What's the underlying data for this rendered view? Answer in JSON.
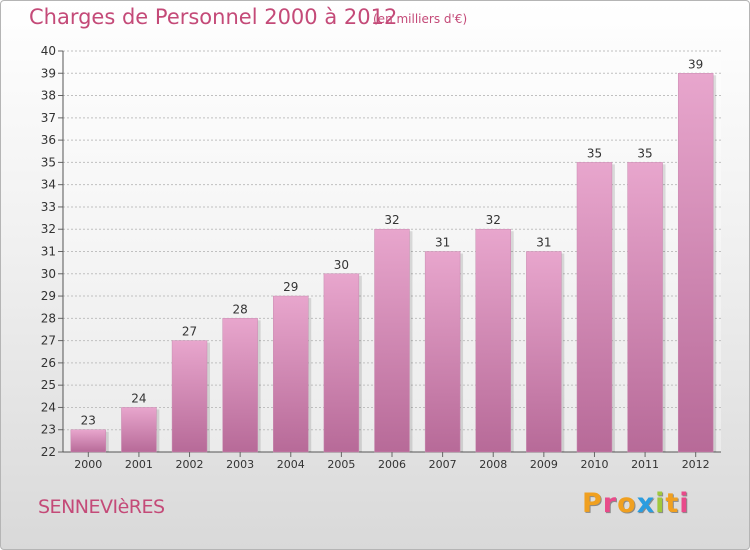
{
  "header": {
    "title": "Charges de Personnel 2000 à 2012",
    "subtitle": "(en milliers d'€)"
  },
  "footer": {
    "commune": "SENNEVIèRES",
    "brand": [
      "P",
      "r",
      "o",
      "x",
      "i",
      "t",
      "i"
    ],
    "brand_colors": [
      "#f0a020",
      "#e84b8a",
      "#f0a020",
      "#2a9de0",
      "#a0c83c",
      "#f0a020",
      "#e84b8a"
    ]
  },
  "colors": {
    "bar_top": "#e8a6cd",
    "bar_bottom": "#b76a98",
    "grid": "#c0c0c0",
    "accent": "#c44a78"
  },
  "chart_data": {
    "type": "bar",
    "categories": [
      "2000",
      "2001",
      "2002",
      "2003",
      "2004",
      "2005",
      "2006",
      "2007",
      "2008",
      "2009",
      "2010",
      "2011",
      "2012"
    ],
    "values": [
      23,
      24,
      27,
      28,
      29,
      30,
      32,
      31,
      32,
      31,
      35,
      35,
      39
    ],
    "ylim": [
      22,
      40
    ],
    "yticks": [
      22,
      23,
      24,
      25,
      26,
      27,
      28,
      29,
      30,
      31,
      32,
      33,
      34,
      35,
      36,
      37,
      38,
      39,
      40
    ],
    "grid": true,
    "data_labels": true
  }
}
